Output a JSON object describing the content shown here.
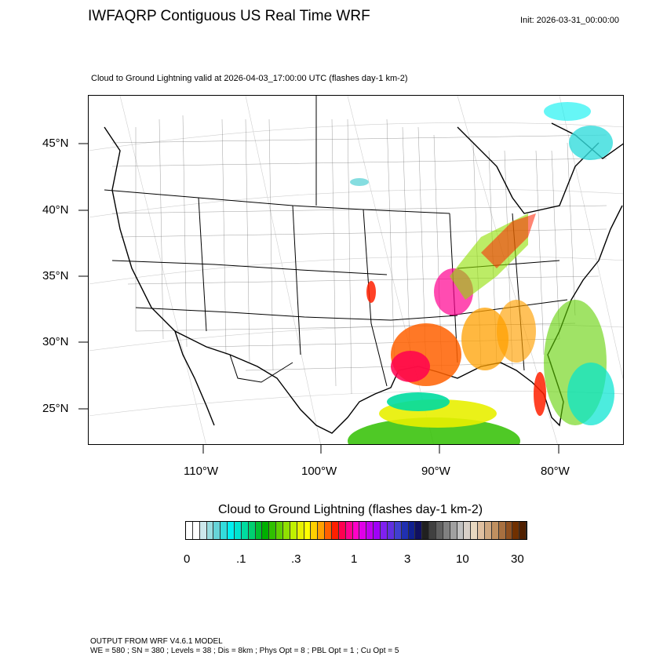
{
  "header": {
    "title": "IWFAQRP Contiguous US Real Time WRF",
    "init": "Init: 2026-03-31_00:00:00",
    "subtitle": "Cloud to Ground Lightning valid at 2026-04-03_17:00:00 UTC   (flashes day-1 km-2)"
  },
  "map": {
    "lat_labels": [
      "45°N",
      "40°N",
      "35°N",
      "30°N",
      "25°N"
    ],
    "lon_labels": [
      "110°W",
      "100°W",
      "90°W",
      "80°W"
    ]
  },
  "colorbar": {
    "title": "Cloud to Ground Lightning  (flashes day-1 km-2)",
    "labels": [
      "0",
      ".1",
      ".3",
      "1",
      "3",
      "10",
      "30"
    ],
    "colors": [
      "#ffffff",
      "#ffffff",
      "#cce8ec",
      "#99dde0",
      "#66d4d8",
      "#33dcdc",
      "#00f0f0",
      "#00e4d0",
      "#00dca0",
      "#00d070",
      "#00c030",
      "#00b000",
      "#30c000",
      "#60d000",
      "#90e000",
      "#c0f000",
      "#e8f000",
      "#ffff00",
      "#ffd000",
      "#ffa000",
      "#ff6000",
      "#ff2000",
      "#ff0050",
      "#ff0090",
      "#ff00c8",
      "#e000e8",
      "#c000f0",
      "#a000f8",
      "#8020f0",
      "#6030e0",
      "#4040d0",
      "#2030b0",
      "#102090",
      "#101060",
      "#202020",
      "#404040",
      "#606060",
      "#808080",
      "#a0a0a0",
      "#c0c0c0",
      "#d8d0c8",
      "#e8d8c0",
      "#e0c0a0",
      "#d0a880",
      "#c09060",
      "#a87040",
      "#905020",
      "#703000",
      "#502000"
    ]
  },
  "footer": {
    "line1": "OUTPUT FROM WRF V4.6.1 MODEL",
    "line2": "WE = 580 ; SN = 380 ; Levels = 38 ; Dis = 8km ; Phys Opt = 8 ; PBL Opt = 1 ; Cu Opt = 5"
  }
}
